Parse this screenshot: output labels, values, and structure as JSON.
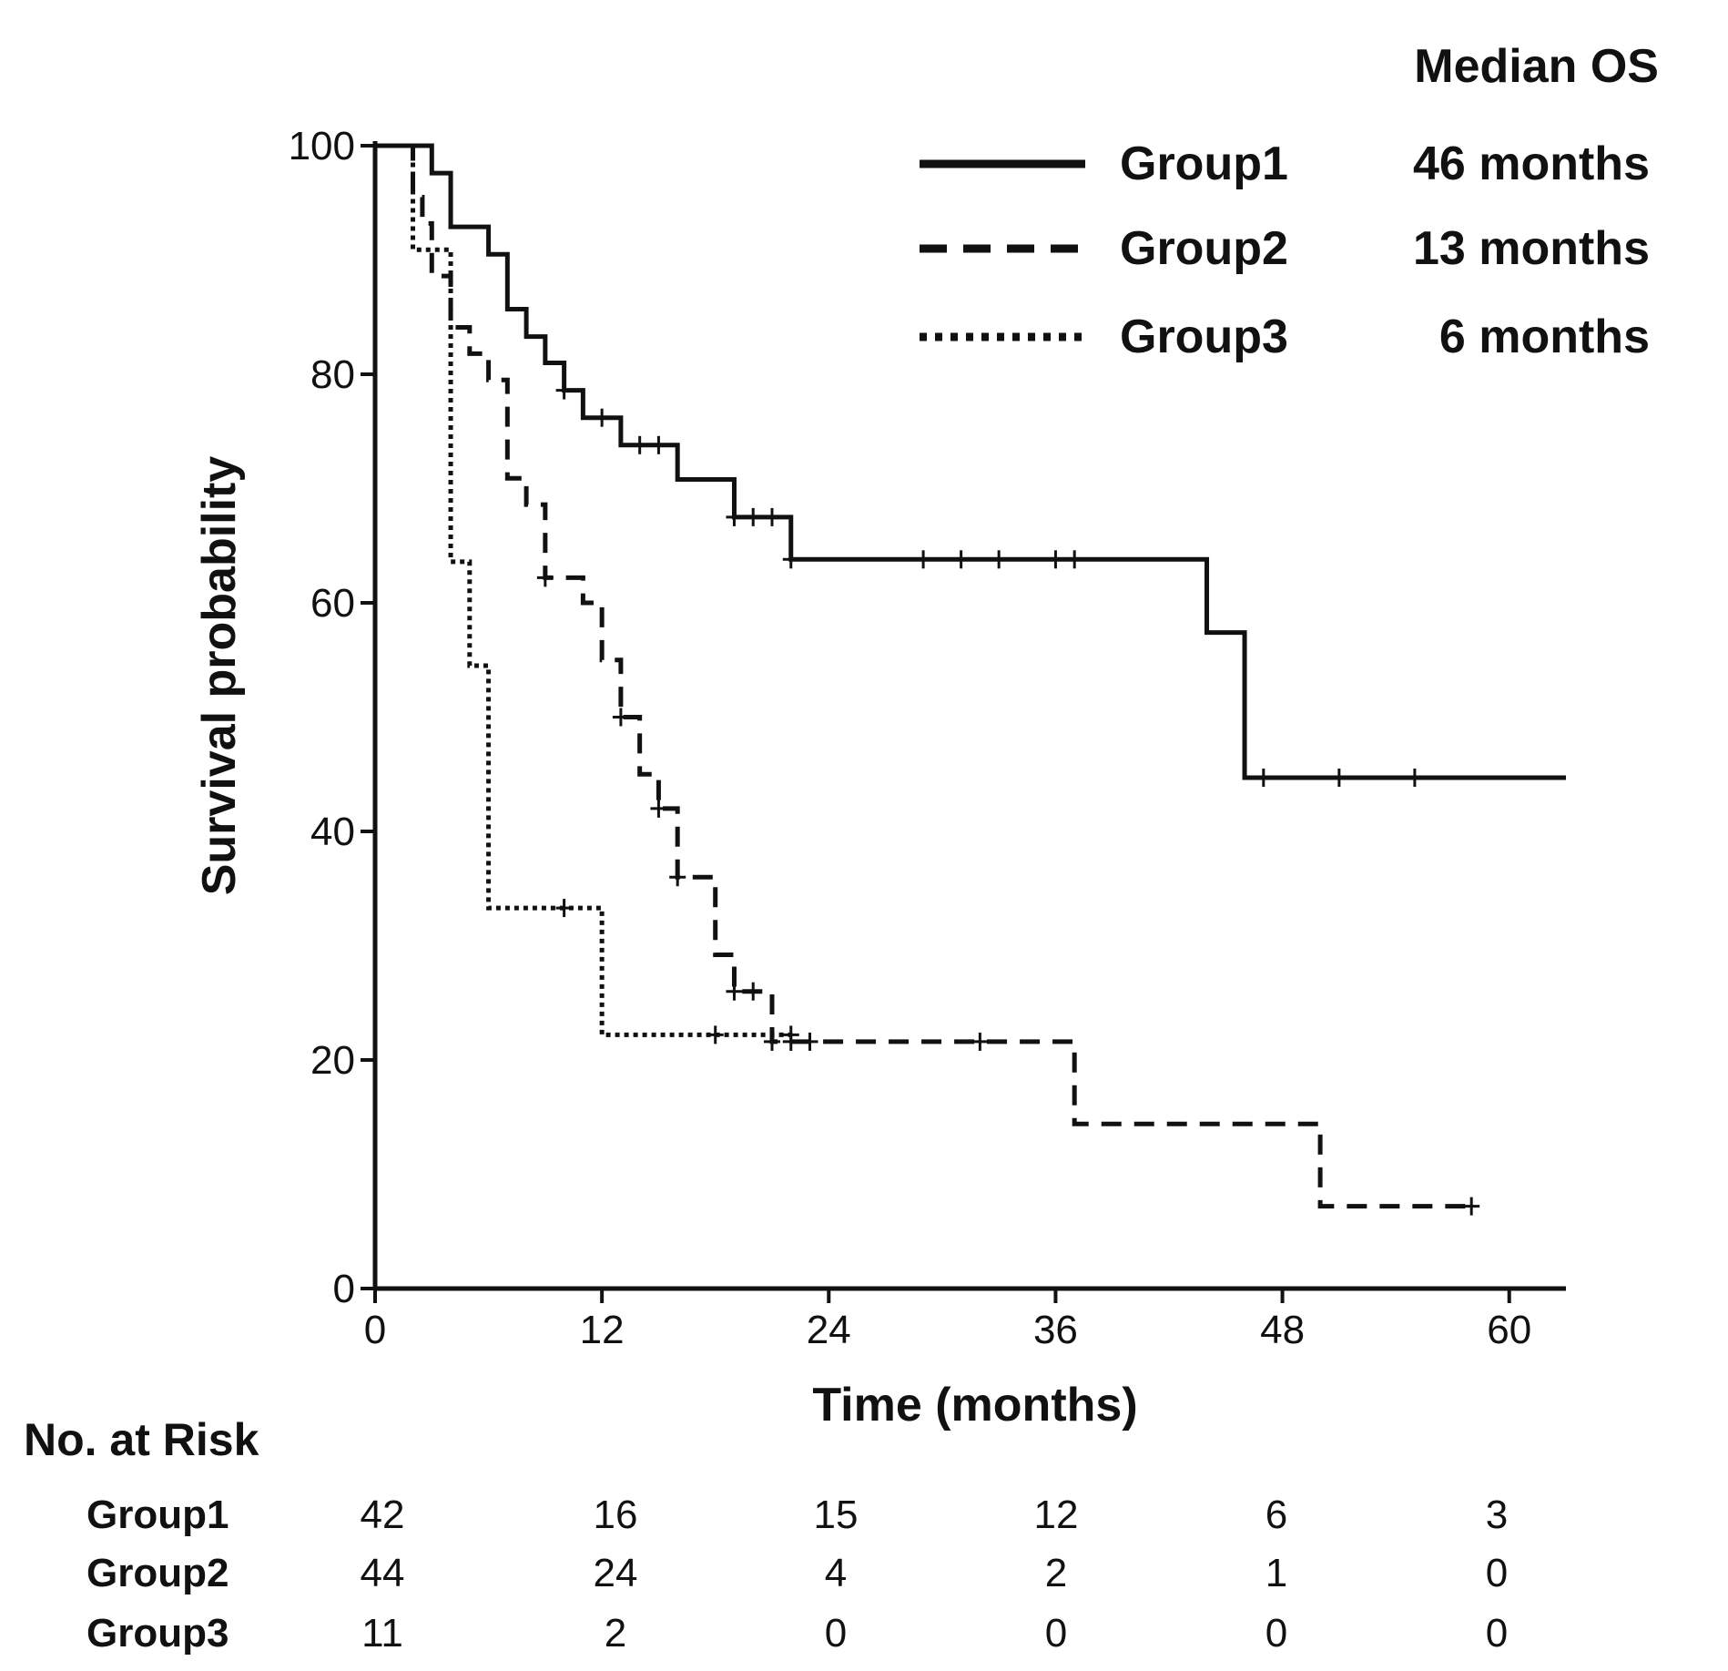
{
  "chart_data": {
    "type": "line",
    "subtype": "kaplan-meier",
    "xlabel": "Time (months)",
    "ylabel": "Survival probability",
    "xlim": [
      0,
      63
    ],
    "ylim": [
      0,
      100
    ],
    "x_ticks": [
      0,
      12,
      24,
      36,
      48,
      60
    ],
    "y_ticks": [
      0,
      20,
      40,
      60,
      80,
      100
    ],
    "legend": {
      "title": "Median OS",
      "position": "top-right",
      "entries": [
        {
          "name": "Group1",
          "style": "solid",
          "median": "46 months"
        },
        {
          "name": "Group2",
          "style": "dashed",
          "median": "13 months"
        },
        {
          "name": "Group3",
          "style": "dotted",
          "median": "6 months"
        }
      ]
    },
    "series": [
      {
        "name": "Group1",
        "style": "solid",
        "steps": [
          [
            0,
            100
          ],
          [
            3,
            97.6
          ],
          [
            4,
            92.9
          ],
          [
            6,
            90.5
          ],
          [
            7,
            85.7
          ],
          [
            8,
            83.3
          ],
          [
            9,
            81
          ],
          [
            10,
            78.6
          ],
          [
            11,
            76.2
          ],
          [
            13,
            73.8
          ],
          [
            16,
            70.8
          ],
          [
            19,
            67.5
          ],
          [
            22,
            63.8
          ],
          [
            44,
            57.4
          ],
          [
            46,
            44.7
          ],
          [
            63,
            44.7
          ]
        ],
        "censored": [
          [
            10,
            78.6
          ],
          [
            12,
            76.2
          ],
          [
            14,
            73.8
          ],
          [
            15,
            73.8
          ],
          [
            19,
            67.5
          ],
          [
            20,
            67.5
          ],
          [
            21,
            67.5
          ],
          [
            22,
            63.8
          ],
          [
            29,
            63.8
          ],
          [
            31,
            63.8
          ],
          [
            33,
            63.8
          ],
          [
            36,
            63.8
          ],
          [
            37,
            63.8
          ],
          [
            47,
            44.7
          ],
          [
            51,
            44.7
          ],
          [
            55,
            44.7
          ]
        ]
      },
      {
        "name": "Group2",
        "style": "dashed",
        "steps": [
          [
            0,
            100
          ],
          [
            2,
            95.5
          ],
          [
            2.5,
            93.2
          ],
          [
            3,
            88.6
          ],
          [
            4,
            84.1
          ],
          [
            5,
            81.8
          ],
          [
            6,
            79.5
          ],
          [
            7,
            70.9
          ],
          [
            8,
            68.6
          ],
          [
            9,
            62.2
          ],
          [
            11,
            60
          ],
          [
            12,
            55
          ],
          [
            13,
            50
          ],
          [
            14,
            45
          ],
          [
            15,
            42
          ],
          [
            16,
            36
          ],
          [
            18,
            29.2
          ],
          [
            19,
            26
          ],
          [
            21,
            21.6
          ],
          [
            37,
            14.4
          ],
          [
            50,
            7.2
          ],
          [
            58,
            7.2
          ]
        ],
        "censored": [
          [
            9,
            62.2
          ],
          [
            13,
            50
          ],
          [
            15,
            42
          ],
          [
            16,
            36
          ],
          [
            19,
            26
          ],
          [
            20,
            26
          ],
          [
            21,
            21.6
          ],
          [
            22,
            21.6
          ],
          [
            23,
            21.6
          ],
          [
            32,
            21.6
          ],
          [
            58,
            7.2
          ]
        ]
      },
      {
        "name": "Group3",
        "style": "dotted",
        "steps": [
          [
            0,
            100
          ],
          [
            2,
            90.9
          ],
          [
            4,
            81.8
          ],
          [
            4,
            72.7
          ],
          [
            4,
            63.6
          ],
          [
            5,
            54.5
          ],
          [
            6,
            45.5
          ],
          [
            6,
            33.3
          ],
          [
            12,
            22.2
          ],
          [
            22,
            22.2
          ]
        ],
        "censored": [
          [
            10,
            33.3
          ],
          [
            18,
            22.2
          ],
          [
            22,
            22.2
          ]
        ]
      }
    ],
    "risk_table": {
      "title": "No. at Risk",
      "times": [
        0,
        12,
        24,
        36,
        48,
        60
      ],
      "rows": [
        {
          "name": "Group1",
          "values": [
            "42",
            "16",
            "15",
            "12",
            "6",
            "3"
          ]
        },
        {
          "name": "Group2",
          "values": [
            "44",
            "24",
            "4",
            "2",
            "1",
            "0"
          ]
        },
        {
          "name": "Group3",
          "values": [
            "11",
            "2",
            "0",
            "0",
            "0",
            "0"
          ]
        }
      ]
    }
  }
}
